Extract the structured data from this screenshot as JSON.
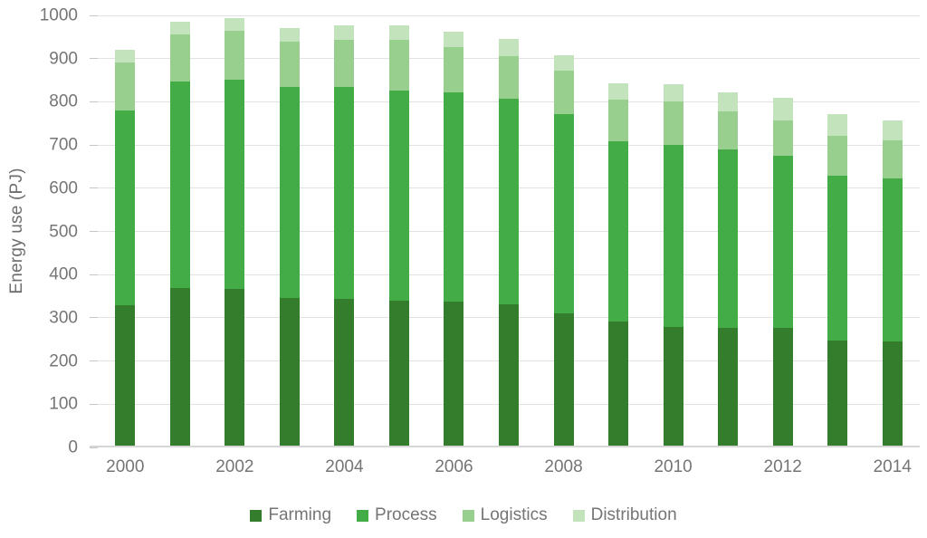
{
  "chart_data": {
    "type": "bar",
    "stacked": true,
    "title": "",
    "xlabel": "",
    "ylabel": "Energy use (PJ)",
    "ylim": [
      0,
      1000
    ],
    "ytick_step": 100,
    "yticks": [
      0,
      100,
      200,
      300,
      400,
      500,
      600,
      700,
      800,
      900,
      1000
    ],
    "grid": true,
    "legend_position": "bottom",
    "categories": [
      "2000",
      "2001",
      "2002",
      "2003",
      "2004",
      "2005",
      "2006",
      "2007",
      "2008",
      "2009",
      "2010",
      "2011",
      "2012",
      "2013",
      "2014"
    ],
    "xtick_label_every": 2,
    "xtick_labels_shown": [
      "2000",
      "2002",
      "2004",
      "2006",
      "2008",
      "2010",
      "2012",
      "2014"
    ],
    "series": [
      {
        "name": "Farming",
        "color": "#337d2d",
        "values": [
          330,
          368,
          366,
          345,
          343,
          340,
          338,
          332,
          311,
          292,
          278,
          276,
          277,
          247,
          245
        ]
      },
      {
        "name": "Process",
        "color": "#43ac46",
        "values": [
          450,
          478,
          485,
          489,
          492,
          486,
          484,
          476,
          461,
          416,
          422,
          414,
          399,
          383,
          378
        ]
      },
      {
        "name": "Logistics",
        "color": "#98ce8e",
        "values": [
          110,
          111,
          113,
          106,
          108,
          117,
          104,
          97,
          101,
          98,
          101,
          87,
          81,
          91,
          87
        ]
      },
      {
        "name": "Distribution",
        "color": "#c3e3bc",
        "values": [
          30,
          29,
          30,
          30,
          33,
          33,
          36,
          41,
          34,
          37,
          40,
          45,
          53,
          50,
          47
        ]
      }
    ],
    "totals": [
      920,
      986,
      994,
      970,
      976,
      976,
      962,
      946,
      907,
      843,
      841,
      822,
      810,
      771,
      757
    ]
  },
  "colors": {
    "background": "#ffffff",
    "gridline": "#e2e2e2",
    "axis_line": "#d6d6d6",
    "tick_mark": "#c6c6c6",
    "text": "#757575"
  }
}
